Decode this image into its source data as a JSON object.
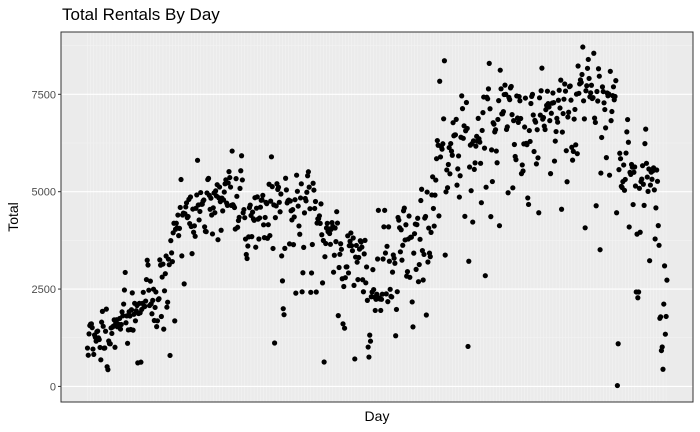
{
  "chart_data": {
    "type": "scatter",
    "title": "Total Rentals By Day",
    "xlabel": "Day",
    "ylabel": "Total",
    "x_tick_labels": "none",
    "ylim": [
      -400,
      9100
    ],
    "yticks": [
      0,
      2500,
      5000,
      7500
    ],
    "ytick_labels": [
      "0",
      "2500",
      "5000",
      "7500"
    ],
    "grid": true,
    "legend": "none",
    "colors": {
      "panel": "#ebebeb",
      "grid_major": "#ffffff",
      "grid_minor": "#f4f4f4",
      "point": "#000000",
      "frame": "#333333"
    },
    "y_series": [
      985,
      801,
      1349,
      1562,
      1600,
      1606,
      1510,
      959,
      822,
      1321,
      1263,
      1162,
      1406,
      1421,
      1248,
      1204,
      1000,
      683,
      1650,
      1927,
      1543,
      981,
      986,
      1416,
      1985,
      506,
      431,
      1167,
      1098,
      1096,
      1501,
      1360,
      1526,
      1550,
      1708,
      1005,
      1623,
      1712,
      1530,
      1605,
      1538,
      1746,
      1472,
      1589,
      1913,
      1815,
      2115,
      2475,
      2927,
      1635,
      1812,
      1107,
      1450,
      1917,
      1807,
      1461,
      1969,
      2402,
      1446,
      1851,
      2134,
      1685,
      1944,
      2077,
      605,
      1872,
      2133,
      1891,
      623,
      1977,
      2132,
      2417,
      2046,
      2056,
      2192,
      2744,
      3239,
      3117,
      2471,
      2077,
      2703,
      2121,
      1865,
      2210,
      2496,
      1693,
      2028,
      2425,
      1536,
      1685,
      2227,
      2252,
      3249,
      3115,
      1795,
      2808,
      3141,
      1471,
      2455,
      2895,
      3348,
      2034,
      2162,
      3267,
      3126,
      795,
      3744,
      3429,
      3204,
      3944,
      4189,
      1683,
      4036,
      4191,
      4073,
      4400,
      3872,
      4058,
      4595,
      5312,
      3351,
      4401,
      4451,
      2633,
      4433,
      4608,
      4714,
      4333,
      4362,
      4803,
      4182,
      4864,
      4105,
      3409,
      4553,
      3958,
      4123,
      3855,
      4575,
      4917,
      5805,
      4660,
      4274,
      4492,
      4978,
      4677,
      4679,
      4758,
      4788,
      4098,
      3982,
      3974,
      4968,
      5312,
      5342,
      4906,
      4548,
      4833,
      4401,
      3915,
      4586,
      4966,
      4460,
      5020,
      4891,
      5180,
      3767,
      4844,
      5119,
      4744,
      4010,
      4835,
      4507,
      4790,
      4991,
      5202,
      5305,
      4708,
      4648,
      5225,
      5515,
      5362,
      5119,
      4649,
      6043,
      4665,
      4629,
      4592,
      4040,
      5336,
      4881,
      4086,
      4258,
      4342,
      5084,
      5538,
      5923,
      5302,
      4458,
      4541,
      4332,
      3784,
      3387,
      3285,
      3606,
      3840,
      4590,
      4656,
      4390,
      3846,
      4475,
      4302,
      4266,
      4845,
      3574,
      4576,
      4866,
      4294,
      3785,
      4326,
      4602,
      4780,
      4792,
      4905,
      4150,
      3820,
      4338,
      4725,
      4694,
      3805,
      4153,
      5191,
      3873,
      4758,
      5895,
      5130,
      3542,
      4661,
      1115,
      4334,
      4634,
      5204,
      5058,
      5115,
      4727,
      4484,
      4940,
      3351,
      2710,
      1996,
      1842,
      3544,
      5345,
      5046,
      4713,
      4763,
      4785,
      3659,
      4760,
      4511,
      4274,
      4539,
      3641,
      4352,
      4795,
      2395,
      5423,
      5010,
      4630,
      4120,
      3907,
      4839,
      5202,
      2429,
      2918,
      3570,
      4456,
      4826,
      4765,
      4985,
      5409,
      5511,
      5117,
      4563,
      2416,
      2913,
      3644,
      5217,
      5041,
      4570,
      4748,
      2424,
      4195,
      4304,
      4308,
      4381,
      4187,
      4687,
      3894,
      2659,
      3747,
      627,
      3331,
      3669,
      4068,
      4186,
      3974,
      4046,
      3926,
      3649,
      4035,
      4205,
      4109,
      2933,
      3368,
      4067,
      3717,
      4486,
      4195,
      1817,
      3053,
      3392,
      3663,
      3520,
      2765,
      1607,
      2566,
      1495,
      2792,
      3068,
      3071,
      3867,
      2914,
      3613,
      3727,
      3940,
      3614,
      3485,
      3811,
      2594,
      705,
      3322,
      3620,
      3190,
      2743,
      3310,
      3523,
      3740,
      3709,
      3577,
      2739,
      2431,
      3403,
      3750,
      2660,
      3068,
      2209,
      1011,
      754,
      1317,
      1162,
      2302,
      2423,
      2999,
      2485,
      2294,
      1951,
      2236,
      2368,
      3272,
      4521,
      2275,
      2244,
      1951,
      2236,
      2368,
      3272,
      4098,
      4521,
      3425,
      2376,
      3598,
      2177,
      4097,
      3214,
      2493,
      2311,
      2298,
      2935,
      3376,
      3292,
      3163,
      1301,
      1977,
      2432,
      4339,
      4270,
      4075,
      3456,
      4023,
      3243,
      3624,
      4509,
      4579,
      3761,
      4151,
      2832,
      2947,
      3784,
      4375,
      2802,
      3830,
      3831,
      2169,
      1529,
      3422,
      3922,
      4169,
      3005,
      4154,
      4318,
      2689,
      3129,
      3777,
      4773,
      5062,
      3487,
      2732,
      3389,
      4322,
      4363,
      1834,
      4990,
      3194,
      4066,
      3423,
      3333,
      3956,
      4916,
      5382,
      4569,
      4118,
      4911,
      5298,
      5847,
      6312,
      6192,
      4378,
      7836,
      5892,
      6153,
      6093,
      6230,
      6871,
      8362,
      3372,
      4996,
      5558,
      5102,
      5698,
      6133,
      5459,
      6235,
      6041,
      5936,
      6772,
      6436,
      6457,
      6460,
      6857,
      5169,
      5585,
      5918,
      4862,
      5409,
      6398,
      7460,
      7132,
      6370,
      6691,
      4367,
      6565,
      7290,
      6624,
      1027,
      3214,
      5633,
      6196,
      5026,
      6233,
      4220,
      6304,
      5572,
      5740,
      6169,
      6421,
      6296,
      6883,
      6359,
      6273,
      5728,
      4717,
      6572,
      7030,
      7429,
      6118,
      2843,
      5115,
      7424,
      7384,
      7639,
      8294,
      7129,
      4359,
      6073,
      5260,
      6770,
      6734,
      6536,
      6591,
      6043,
      5743,
      6855,
      7338,
      4127,
      8120,
      7641,
      6998,
      7001,
      7055,
      7494,
      7736,
      7498,
      6598,
      6664,
      4972,
      7421,
      7363,
      7665,
      7702,
      6978,
      5099,
      6825,
      6211,
      5905,
      5823,
      7458,
      6891,
      6779,
      7442,
      7335,
      6879,
      5463,
      5687,
      5531,
      6227,
      6660,
      7403,
      6241,
      6207,
      4840,
      4672,
      6569,
      6290,
      7264,
      7446,
      7499,
      6969,
      6031,
      6830,
      6786,
      5713,
      6591,
      5870,
      4459,
      7410,
      6966,
      7592,
      8173,
      6861,
      6904,
      6685,
      6597,
      7105,
      7216,
      7580,
      7261,
      7175,
      6824,
      5464,
      7013,
      7273,
      7534,
      7286,
      5786,
      6299,
      6544,
      6883,
      6784,
      7347,
      7605,
      7148,
      7865,
      4549,
      6530,
      7006,
      7375,
      7765,
      7582,
      6053,
      5255,
      6917,
      7040,
      7697,
      7713,
      7350,
      6140,
      5810,
      6034,
      6864,
      7112,
      6203,
      7504,
      5976,
      8227,
      7525,
      7767,
      7870,
      7804,
      8009,
      8714,
      7333,
      6869,
      4073,
      7591,
      7720,
      8167,
      8395,
      7907,
      7436,
      7538,
      7733,
      7393,
      7415,
      8555,
      6889,
      6778,
      4639,
      7572,
      7328,
      8156,
      7965,
      3510,
      5478,
      6392,
      7691,
      7570,
      7282,
      7109,
      6639,
      5875,
      7534,
      7461,
      7509,
      5424,
      8090,
      6824,
      7058,
      7466,
      7693,
      7359,
      7444,
      7852,
      4459,
      22,
      1096,
      5566,
      5986,
      5847,
      5138,
      5107,
      5259,
      5686,
      5035,
      5315,
      5992,
      6536,
      6852,
      6269,
      4094,
      5495,
      5445,
      5698,
      5629,
      4669,
      5499,
      5634,
      5146,
      2425,
      3910,
      2277,
      2424,
      5087,
      3959,
      5260,
      5323,
      5668,
      5191,
      4649,
      6234,
      6606,
      5729,
      5375,
      5008,
      5582,
      3228,
      5170,
      5501,
      5319,
      5532,
      5611,
      5047,
      3786,
      4585,
      5557,
      5267,
      4128,
      3623,
      1749,
      1787,
      920,
      1013,
      441,
      2114,
      3095,
      1341,
      1796,
      2729
    ]
  }
}
